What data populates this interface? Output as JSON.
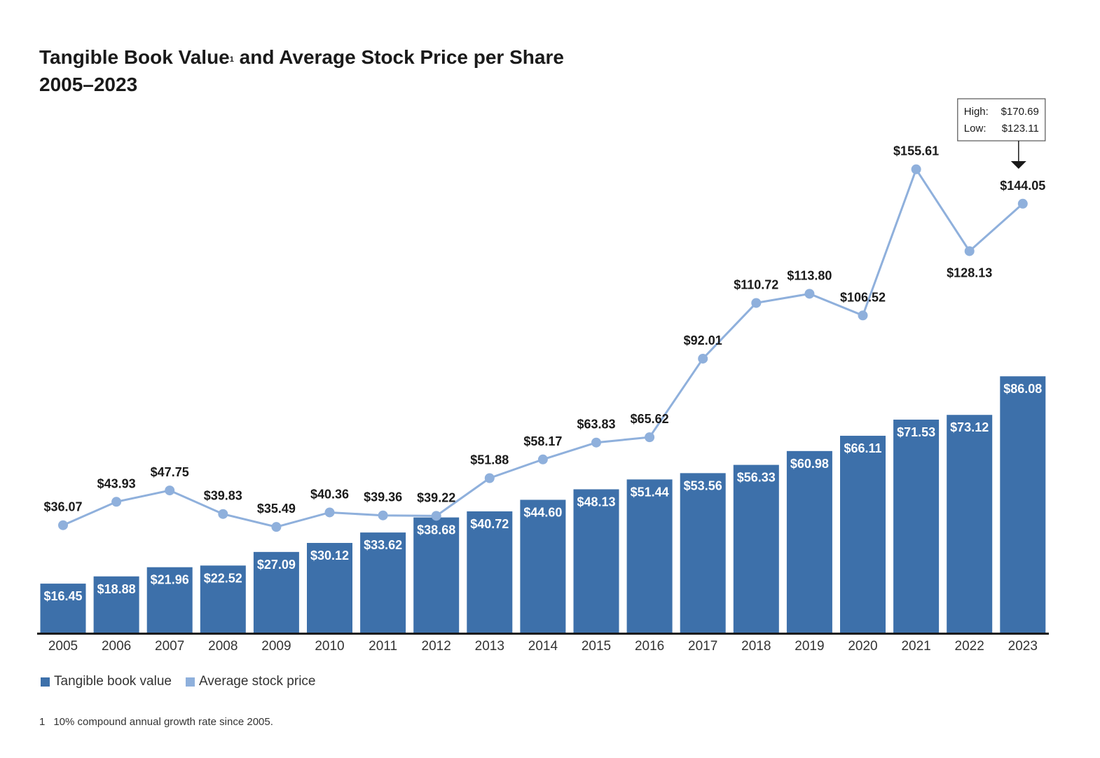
{
  "title": {
    "line1_before": "Tangible Book Value",
    "line1_sup": "1",
    "line1_after": " and Average Stock Price per Share",
    "line2": "2005–2023"
  },
  "colors": {
    "bar": "#3d70aa",
    "line": "#8fb0dc",
    "axis": "#1a1a1a",
    "bar_label": "#ffffff",
    "line_label": "#1a1a1a"
  },
  "chart_data": {
    "type": "bar",
    "categories": [
      "2005",
      "2006",
      "2007",
      "2008",
      "2009",
      "2010",
      "2011",
      "2012",
      "2013",
      "2014",
      "2015",
      "2016",
      "2017",
      "2018",
      "2019",
      "2020",
      "2021",
      "2022",
      "2023"
    ],
    "series": [
      {
        "name": "Tangible book value",
        "type": "bar",
        "values": [
          16.45,
          18.88,
          21.96,
          22.52,
          27.09,
          30.12,
          33.62,
          38.68,
          40.72,
          44.6,
          48.13,
          51.44,
          53.56,
          56.33,
          60.98,
          66.11,
          71.53,
          73.12,
          86.08
        ],
        "labels": [
          "$16.45",
          "$18.88",
          "$21.96",
          "$22.52",
          "$27.09",
          "$30.12",
          "$33.62",
          "$38.68",
          "$40.72",
          "$44.60",
          "$48.13",
          "$51.44",
          "$53.56",
          "$56.33",
          "$60.98",
          "$66.11",
          "$71.53",
          "$73.12",
          "$86.08"
        ]
      },
      {
        "name": "Average stock price",
        "type": "line",
        "values": [
          36.07,
          43.93,
          47.75,
          39.83,
          35.49,
          40.36,
          39.36,
          39.22,
          51.88,
          58.17,
          63.83,
          65.62,
          92.01,
          110.72,
          113.8,
          106.52,
          155.61,
          128.13,
          144.05
        ],
        "labels": [
          "$36.07",
          "$43.93",
          "$47.75",
          "$39.83",
          "$35.49",
          "$40.36",
          "$39.36",
          "$39.22",
          "$51.88",
          "$58.17",
          "$63.83",
          "$65.62",
          "$92.01",
          "$110.72",
          "$113.80",
          "$106.52",
          "$155.61",
          "$128.13",
          "$144.05"
        ],
        "label_position": [
          "above",
          "above",
          "above",
          "above",
          "above",
          "above",
          "above",
          "above",
          "above",
          "above",
          "above",
          "above",
          "above",
          "above",
          "above",
          "above",
          "above",
          "below",
          "above"
        ]
      }
    ],
    "ylim": [
      0,
      175
    ],
    "annotation": {
      "category": "2023",
      "high_label": "High:",
      "high_value": "$170.69",
      "low_label": "Low:",
      "low_value": "$123.11"
    },
    "legend_position": "bottom-left",
    "grid": false
  },
  "legend": {
    "items": [
      {
        "label": "Tangible book value"
      },
      {
        "label": "Average stock price"
      }
    ]
  },
  "footnote": {
    "number": "1",
    "text": "10% compound annual growth rate since 2005."
  }
}
